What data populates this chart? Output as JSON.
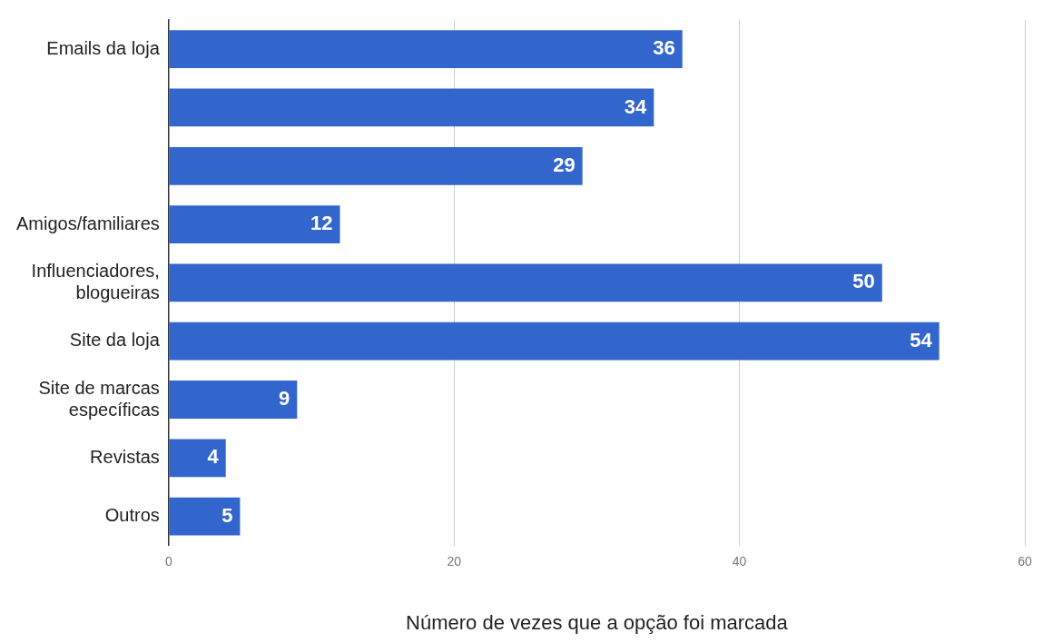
{
  "chart_data": {
    "type": "bar",
    "orientation": "horizontal",
    "xlabel": "Número de vezes que a opção foi marcada",
    "categories": [
      "Emails da loja",
      null,
      null,
      "Amigos/familiares",
      "Influenciadores, blogueiras",
      "Site da loja",
      "Site de marcas específicas",
      "Revistas",
      "Outros"
    ],
    "values": [
      36,
      34,
      29,
      12,
      50,
      54,
      9,
      4,
      5
    ],
    "color": "#3366cc",
    "data_labels": true,
    "xlim": [
      0,
      60
    ],
    "xticks": [
      0,
      20,
      40,
      60
    ],
    "grid": "x",
    "legend": false
  }
}
